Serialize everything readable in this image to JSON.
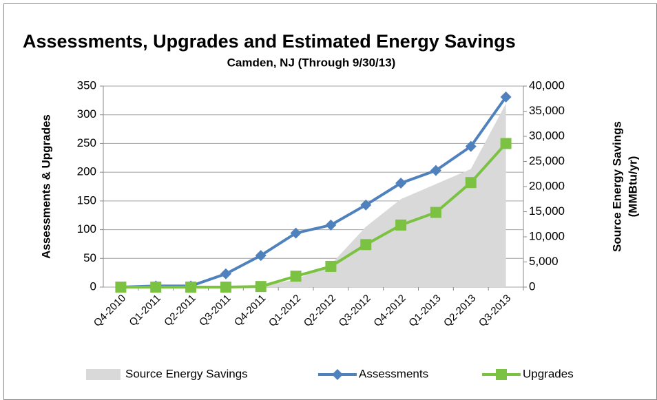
{
  "chart_data": {
    "type": "line",
    "title": "Assessments, Upgrades and Estimated Energy Savings",
    "subtitle": "Camden, NJ (Through 9/30/13)",
    "y_label": "Assessments & Upgrades",
    "y2_label": [
      "Source Energy Savings",
      "(MMBtu/yr)"
    ],
    "categories": [
      "Q4-2010",
      "Q1-2011",
      "Q2-2011",
      "Q3-2011",
      "Q4-2011",
      "Q1-2012",
      "Q2-2012",
      "Q3-2012",
      "Q4-2012",
      "Q1-2013",
      "Q2-2013",
      "Q3-2013"
    ],
    "series": [
      {
        "name": "Source Energy Savings",
        "type": "area",
        "axis": "y2",
        "color": "#d9d9d9",
        "values": [
          0,
          0,
          0,
          0,
          200,
          1500,
          4500,
          12000,
          17500,
          20500,
          23500,
          36500
        ]
      },
      {
        "name": "Assessments",
        "type": "line",
        "marker": "diamond",
        "color": "#4f81bd",
        "values": [
          0,
          2,
          2,
          23,
          55,
          94,
          108,
          143,
          181,
          203,
          245,
          331
        ]
      },
      {
        "name": "Upgrades",
        "type": "line",
        "marker": "square",
        "color": "#7cc242",
        "values": [
          0,
          0,
          0,
          0,
          1,
          19,
          36,
          74,
          108,
          130,
          182,
          250
        ]
      }
    ],
    "ylim": [
      0,
      350
    ],
    "yticks": [
      0,
      50,
      100,
      150,
      200,
      250,
      300,
      350
    ],
    "y2lim": [
      0,
      40000
    ],
    "y2ticks": [
      0,
      {
        "value": 5000,
        "label": "5,000"
      },
      {
        "value": 10000,
        "label": "10,000"
      },
      {
        "value": 15000,
        "label": "15,000"
      },
      {
        "value": 20000,
        "label": "20,000"
      },
      {
        "value": 25000,
        "label": "25,000"
      },
      {
        "value": 30000,
        "label": "30,000"
      },
      {
        "value": 35000,
        "label": "35,000"
      },
      {
        "value": 40000,
        "label": "40,000"
      }
    ],
    "grid": true,
    "legend": "bottom"
  }
}
